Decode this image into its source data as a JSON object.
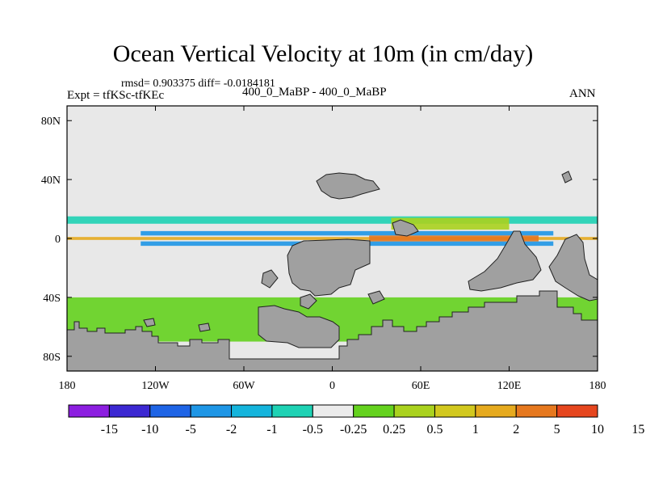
{
  "chart_data": {
    "type": "heatmap",
    "title": "Ocean Vertical Velocity at 10m (in cm/day)",
    "stats_label": "rmsd= 0.903375  diff= -0.0184181",
    "rmsd": 0.903375,
    "diff": -0.0184181,
    "left_label": "Expt = tfKSc-tfKEc",
    "center_label": "400_0_MaBP - 400_0_MaBP",
    "right_label": "ANN",
    "xlim": [
      -180,
      180
    ],
    "ylim": [
      -90,
      90
    ],
    "x_ticks": [
      {
        "value": -180,
        "label": "180"
      },
      {
        "value": -120,
        "label": "120W"
      },
      {
        "value": -60,
        "label": "60W"
      },
      {
        "value": 0,
        "label": "0"
      },
      {
        "value": 60,
        "label": "60E"
      },
      {
        "value": 120,
        "label": "120E"
      },
      {
        "value": 180,
        "label": "180"
      }
    ],
    "y_ticks": [
      {
        "value": 80,
        "label": "80N"
      },
      {
        "value": 40,
        "label": "40N"
      },
      {
        "value": 0,
        "label": "0"
      },
      {
        "value": -40,
        "label": "40S"
      },
      {
        "value": -80,
        "label": "80S"
      }
    ],
    "colorbar": {
      "colors": [
        "#8c1ee0",
        "#3c28d2",
        "#1e64e6",
        "#1e96e6",
        "#14b4dc",
        "#1ed2b4",
        "#ebebeb",
        "#64d21e",
        "#aad21e",
        "#d2c81e",
        "#e6aa1e",
        "#e6781e",
        "#e6461e"
      ],
      "labels": [
        "-15",
        "-10",
        "-5",
        "-2",
        "-1",
        "-0.5",
        "-0.25",
        "0.25",
        "0.5",
        "1",
        "2",
        "5",
        "10",
        "15"
      ]
    },
    "field_bands": [
      {
        "name": "north-equatorial-band",
        "lon": [
          -180,
          180
        ],
        "lat": [
          10,
          15
        ],
        "color": "#1ed2b4"
      },
      {
        "name": "equatorial-upwelling",
        "lon": [
          -180,
          180
        ],
        "lat": [
          -1,
          1
        ],
        "color": "#e6aa1e"
      },
      {
        "name": "north-downwelling",
        "lon": [
          -130,
          150
        ],
        "lat": [
          2,
          5
        ],
        "color": "#1e96e6"
      },
      {
        "name": "south-downwelling",
        "lon": [
          -130,
          150
        ],
        "lat": [
          -5,
          -2
        ],
        "color": "#1e96e6"
      },
      {
        "name": "indian-ocean-cell",
        "lon": [
          25,
          140
        ],
        "lat": [
          -2,
          2
        ],
        "color": "#e6781e"
      },
      {
        "name": "arabian-sea",
        "lon": [
          40,
          120
        ],
        "lat": [
          6,
          14
        ],
        "color": "#aad21e"
      },
      {
        "name": "southern-ocean",
        "lon": [
          -180,
          180
        ],
        "lat": [
          -70,
          -40
        ],
        "color": "#64d21e"
      }
    ]
  }
}
